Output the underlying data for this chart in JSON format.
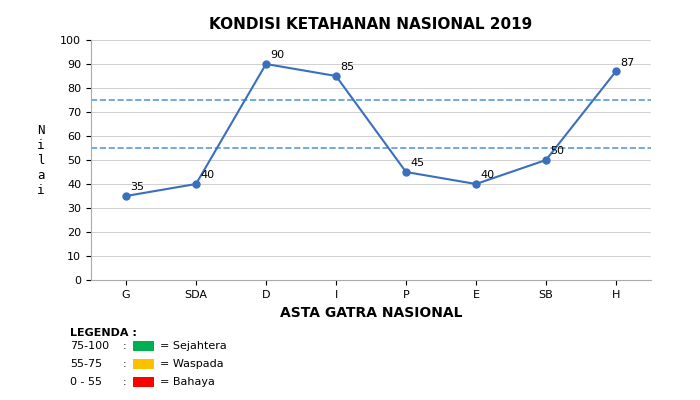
{
  "title": "KONDISI KETAHANAN NASIONAL 2019",
  "xlabel": "ASTA GATRA NASIONAL",
  "ylabel": "N\ni\nl\na\ni",
  "categories": [
    "G",
    "SDA",
    "D",
    "I",
    "P",
    "E",
    "SB",
    "H"
  ],
  "values": [
    35,
    40,
    90,
    85,
    45,
    40,
    50,
    87
  ],
  "line_color": "#3a6fbf",
  "marker": "o",
  "marker_size": 5,
  "ylim": [
    0,
    100
  ],
  "yticks": [
    0,
    10,
    20,
    30,
    40,
    50,
    60,
    70,
    80,
    90,
    100
  ],
  "hline_75": 75,
  "hline_55": 55,
  "hline_color": "#5b9bd5",
  "hline_style": "--",
  "legend_title": "LEGENDA :",
  "legend_items": [
    {
      "range": "75-100",
      "label": "= Sejahtera",
      "color": "#00b050"
    },
    {
      "range": "55-75",
      "label": "= Waspada",
      "color": "#ffc000"
    },
    {
      "range": "0 - 55",
      "label": "= Bahaya",
      "color": "#ff0000"
    }
  ],
  "bg_color": "#ffffff",
  "plot_bg_color": "#ffffff",
  "title_fontsize": 11,
  "label_fontsize": 9,
  "tick_fontsize": 8,
  "annotation_fontsize": 8
}
